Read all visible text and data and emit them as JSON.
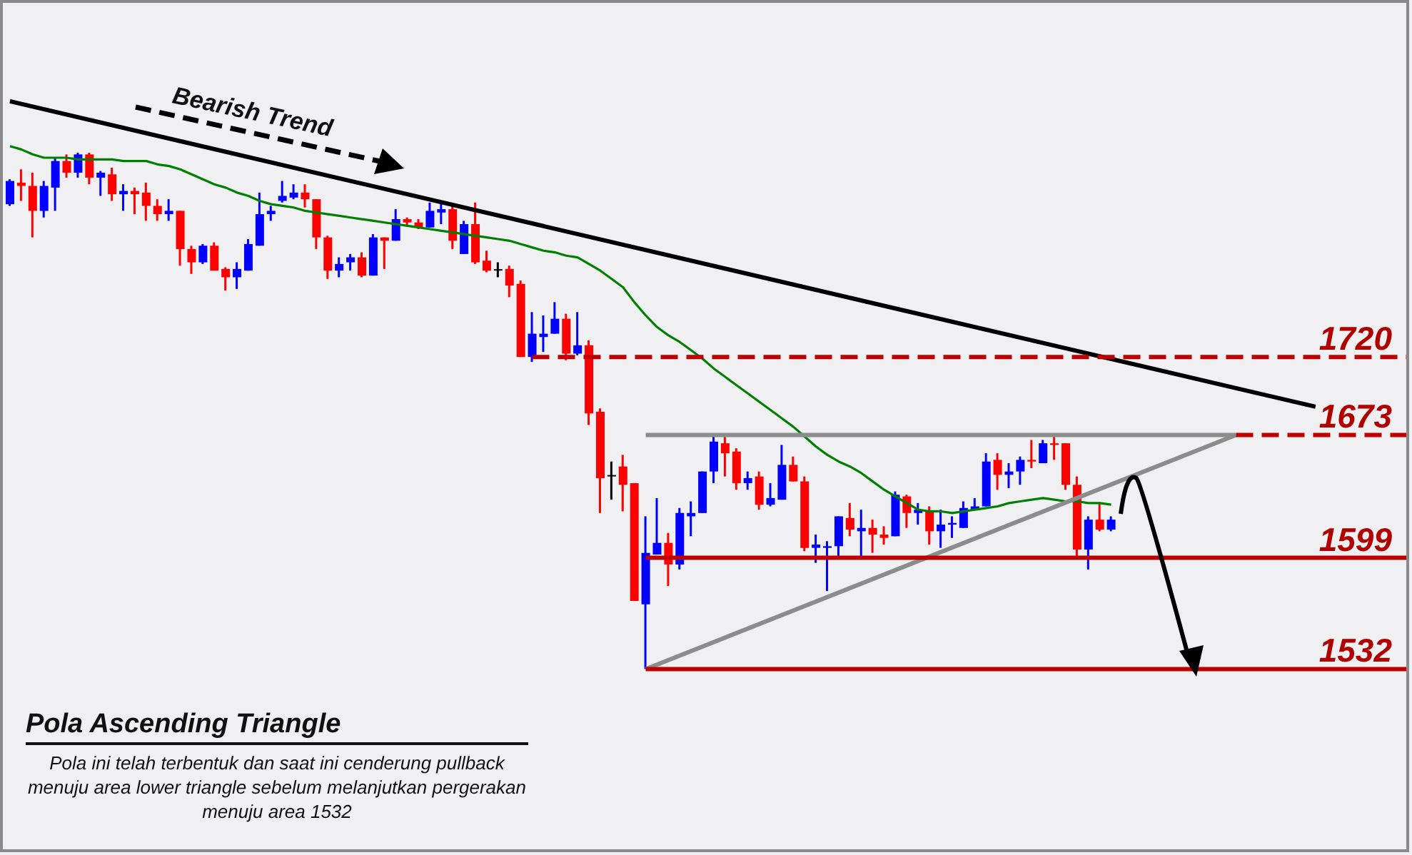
{
  "chart_data": {
    "type": "candlestick",
    "title": "Pola Ascending Triangle",
    "subtitle": "Pola ini telah terbentuk dan saat ini cenderung pullback menuju area lower triangle sebelum melanjutkan pergerakan menuju area 1532",
    "annotations": [
      "Bearish Trend"
    ],
    "categories": [
      null,
      null,
      null,
      null,
      null,
      null,
      null,
      null,
      null,
      null,
      null,
      null,
      null,
      null,
      null,
      null,
      null,
      null,
      null,
      null,
      null,
      null,
      null,
      null,
      null,
      null,
      null,
      null,
      null,
      null,
      null,
      null,
      null,
      null,
      null,
      null,
      null,
      null,
      null,
      null,
      null,
      null,
      null,
      null,
      null,
      null,
      null,
      null,
      null,
      null,
      null,
      null,
      null,
      null,
      null,
      null,
      null,
      null,
      null,
      null,
      null,
      null,
      null,
      null,
      null,
      null,
      null,
      null,
      null,
      null,
      null,
      null,
      null,
      null,
      null,
      null,
      null,
      null,
      null,
      null,
      null,
      null,
      null,
      null,
      null,
      null,
      null,
      null,
      null,
      null,
      null,
      null,
      null,
      null,
      null,
      null,
      null,
      null,
      null,
      null,
      null,
      null,
      null,
      null,
      null,
      null,
      null,
      null,
      null,
      null,
      null,
      null,
      null,
      null,
      null,
      null,
      null,
      null,
      null,
      null,
      null,
      null,
      null,
      null
    ],
    "ylim": [
      1420,
      1935
    ],
    "yticks": [
      1532,
      1599,
      1673,
      1720
    ],
    "tick_labels": "y",
    "ref_lines": [
      {
        "axis": "y",
        "value": 1720,
        "color": "#c00000",
        "line_style": "dashed"
      },
      {
        "axis": "y",
        "value": 1673,
        "color": "#c00000",
        "line_style": "dashed"
      },
      {
        "axis": "y",
        "value": 1599,
        "color": "#c00000",
        "line_style": "solid"
      },
      {
        "axis": "y",
        "value": 1532,
        "color": "#c00000",
        "line_style": "solid"
      }
    ],
    "series": [
      {
        "ohlc": [
          [
            1812,
            1827,
            1811,
            1826
          ],
          [
            1825,
            1833,
            1814,
            1823
          ],
          [
            1823,
            1831,
            1792,
            1808
          ],
          [
            1808,
            1826,
            1804,
            1823
          ],
          [
            1822,
            1840,
            1808,
            1838
          ],
          [
            1838,
            1842,
            1828,
            1831
          ],
          [
            1831,
            1843,
            1828,
            1842
          ],
          [
            1842,
            1843,
            1824,
            1828
          ],
          [
            1828,
            1832,
            1817,
            1831
          ],
          [
            1830,
            1834,
            1814,
            1818
          ],
          [
            1818,
            1824,
            1808,
            1820
          ],
          [
            1820,
            1822,
            1806,
            1818
          ],
          [
            1819,
            1825,
            1802,
            1811
          ],
          [
            1811,
            1815,
            1802,
            1806
          ],
          [
            1806,
            1815,
            1802,
            1808
          ],
          [
            1808,
            1808,
            1775,
            1785
          ],
          [
            1785,
            1787,
            1770,
            1777
          ],
          [
            1777,
            1788,
            1776,
            1787
          ],
          [
            1787,
            1789,
            1772,
            1772
          ],
          [
            1773,
            1774,
            1760,
            1768
          ],
          [
            1768,
            1777,
            1761,
            1773
          ],
          [
            1772,
            1791,
            1772,
            1788
          ],
          [
            1787,
            1819,
            1787,
            1806
          ],
          [
            1806,
            1811,
            1802,
            1808
          ],
          [
            1814,
            1826,
            1813,
            1817
          ],
          [
            1816,
            1824,
            1815,
            1819
          ],
          [
            1819,
            1824,
            1810,
            1815
          ],
          [
            1815,
            1815,
            1785,
            1792
          ],
          [
            1792,
            1793,
            1767,
            1772
          ],
          [
            1772,
            1780,
            1768,
            1776
          ],
          [
            1777,
            1782,
            1772,
            1780
          ],
          [
            1780,
            1783,
            1768,
            1769
          ],
          [
            1769,
            1794,
            1769,
            1792
          ],
          [
            1792,
            1792,
            1773,
            1790
          ],
          [
            1790,
            1809,
            1790,
            1803
          ],
          [
            1803,
            1804,
            1799,
            1801
          ],
          [
            1801,
            1803,
            1797,
            1798
          ],
          [
            1798,
            1813,
            1798,
            1808
          ],
          [
            1807,
            1813,
            1800,
            1809
          ],
          [
            1809,
            1811,
            1785,
            1790
          ],
          [
            1782,
            1802,
            1782,
            1800
          ],
          [
            1800,
            1813,
            1776,
            1777
          ],
          [
            1778,
            1784,
            1771,
            1772
          ],
          [
            1772,
            1777,
            1768,
            1772
          ],
          [
            1773,
            1775,
            1756,
            1763
          ],
          [
            1764,
            1766,
            1720,
            1720
          ],
          [
            1720,
            1747,
            1717,
            1734
          ],
          [
            1732,
            1745,
            1723,
            1734
          ],
          [
            1734,
            1753,
            1734,
            1743
          ],
          [
            1743,
            1746,
            1718,
            1722
          ],
          [
            1722,
            1747,
            1721,
            1727
          ],
          [
            1727,
            1730,
            1679,
            1686
          ],
          [
            1687,
            1689,
            1626,
            1647
          ],
          [
            1648,
            1657,
            1634,
            1648
          ],
          [
            1654,
            1661,
            1627,
            1643
          ],
          [
            1644,
            1644,
            1573,
            1573
          ],
          [
            1571,
            1624,
            1532,
            1602
          ],
          [
            1601,
            1635,
            1601,
            1608
          ],
          [
            1608,
            1614,
            1582,
            1595
          ],
          [
            1595,
            1629,
            1592,
            1626
          ],
          [
            1624,
            1633,
            1612,
            1626
          ],
          [
            1626,
            1651,
            1626,
            1651
          ],
          [
            1651,
            1674,
            1644,
            1669
          ],
          [
            1668,
            1674,
            1648,
            1662
          ],
          [
            1663,
            1665,
            1640,
            1644
          ],
          [
            1644,
            1651,
            1640,
            1647
          ],
          [
            1648,
            1651,
            1628,
            1631
          ],
          [
            1631,
            1644,
            1630,
            1635
          ],
          [
            1634,
            1667,
            1634,
            1655
          ],
          [
            1655,
            1660,
            1645,
            1645
          ],
          [
            1645,
            1648,
            1603,
            1605
          ],
          [
            1605,
            1613,
            1596,
            1607
          ],
          [
            1605,
            1609,
            1579,
            1606
          ],
          [
            1606,
            1624,
            1600,
            1624
          ],
          [
            1623,
            1632,
            1612,
            1616
          ],
          [
            1615,
            1628,
            1600,
            1617
          ],
          [
            1617,
            1622,
            1602,
            1613
          ],
          [
            1613,
            1618,
            1607,
            1611
          ],
          [
            1612,
            1639,
            1612,
            1637
          ],
          [
            1636,
            1637,
            1617,
            1626
          ],
          [
            1626,
            1632,
            1619,
            1628
          ],
          [
            1627,
            1630,
            1607,
            1615
          ],
          [
            1615,
            1628,
            1605,
            1619
          ],
          [
            1619,
            1624,
            1611,
            1620
          ],
          [
            1617,
            1633,
            1617,
            1629
          ],
          [
            1628,
            1635,
            1628,
            1630
          ],
          [
            1630,
            1662,
            1630,
            1657
          ],
          [
            1658,
            1662,
            1640,
            1649
          ],
          [
            1649,
            1656,
            1641,
            1651
          ],
          [
            1651,
            1660,
            1643,
            1658
          ],
          [
            1658,
            1670,
            1653,
            1657
          ],
          [
            1656,
            1670,
            1656,
            1668
          ],
          [
            1668,
            1674,
            1658,
            1667
          ],
          [
            1668,
            1668,
            1640,
            1643
          ],
          [
            1643,
            1648,
            1600,
            1604
          ],
          [
            1604,
            1624,
            1592,
            1622
          ],
          [
            1622,
            1632,
            1615,
            1616
          ],
          [
            1616,
            1624,
            1615,
            1622
          ],
          null,
          null,
          null,
          null,
          null,
          null,
          null,
          null,
          null,
          null,
          null,
          null,
          null,
          null,
          null,
          null,
          null,
          null,
          null,
          null,
          null,
          null,
          null,
          null,
          null,
          null
        ],
        "colors": [
          "#0000ff",
          "#ff0000",
          "#ff0000",
          "#0000ff",
          "#0000ff",
          "#ff0000",
          "#0000ff",
          "#ff0000",
          "#0000ff",
          "#ff0000",
          "#0000ff",
          "#ff0000",
          "#ff0000",
          "#ff0000",
          "#0000ff",
          "#ff0000",
          "#ff0000",
          "#0000ff",
          "#ff0000",
          "#ff0000",
          "#0000ff",
          "#0000ff",
          "#0000ff",
          "#0000ff",
          "#0000ff",
          "#0000ff",
          "#ff0000",
          "#ff0000",
          "#ff0000",
          "#0000ff",
          "#0000ff",
          "#ff0000",
          "#0000ff",
          "#ff0000",
          "#0000ff",
          "#ff0000",
          "#ff0000",
          "#0000ff",
          "#0000ff",
          "#ff0000",
          "#0000ff",
          "#ff0000",
          "#ff0000",
          "#000000",
          "#ff0000",
          "#ff0000",
          "#0000ff",
          "#0000ff",
          "#0000ff",
          "#ff0000",
          "#0000ff",
          "#ff0000",
          "#ff0000",
          "#000000",
          "#ff0000",
          "#ff0000",
          "#0000ff",
          "#0000ff",
          "#ff0000",
          "#0000ff",
          "#0000ff",
          "#0000ff",
          "#0000ff",
          "#ff0000",
          "#ff0000",
          "#0000ff",
          "#ff0000",
          "#0000ff",
          "#0000ff",
          "#ff0000",
          "#ff0000",
          "#0000ff",
          "#0000ff",
          "#0000ff",
          "#ff0000",
          "#0000ff",
          "#ff0000",
          "#ff0000",
          "#0000ff",
          "#ff0000",
          "#0000ff",
          "#ff0000",
          "#0000ff",
          "#0000ff",
          "#0000ff",
          "#0000ff",
          "#0000ff",
          "#ff0000",
          "#0000ff",
          "#0000ff",
          "#ff0000",
          "#0000ff",
          "#ff0000",
          "#ff0000",
          "#ff0000",
          "#0000ff",
          "#ff0000",
          "#0000ff",
          null,
          null,
          null,
          null,
          null,
          null,
          null,
          null,
          null,
          null,
          null,
          null,
          null,
          null,
          null,
          null,
          null,
          null,
          null,
          null,
          null,
          null,
          null,
          null,
          null,
          null
        ]
      },
      {
        "type": "line",
        "color": "#008000",
        "values": [
          1847,
          1845,
          1842,
          1840,
          1840,
          1840,
          1839,
          1839,
          1839,
          1839,
          1838,
          1838,
          1838,
          1836,
          1835,
          1833,
          1830,
          1827,
          1824,
          1822,
          1819,
          1817,
          1814,
          1812,
          1811,
          1810,
          1808,
          1807,
          1806,
          1805,
          1804,
          1803,
          1802,
          1801,
          1800,
          1799,
          1798,
          1797,
          1796,
          1795,
          1794,
          1793,
          1792,
          1791,
          1790,
          1788,
          1786,
          1784,
          1783,
          1781,
          1780,
          1776,
          1772,
          1767,
          1762,
          1753,
          1745,
          1738,
          1733,
          1729,
          1724,
          1719,
          1713,
          1708,
          1703,
          1698,
          1693,
          1688,
          1683,
          1678,
          1672,
          1666,
          1661,
          1657,
          1654,
          1650,
          1645,
          1640,
          1636,
          1632,
          1628,
          1627,
          1627,
          1626,
          1627,
          1628,
          1629,
          1630,
          1632,
          1633,
          1634,
          1635,
          1634,
          1633,
          1633,
          1632,
          1632,
          1631,
          null,
          null,
          null,
          null,
          null,
          null,
          null,
          null,
          null,
          null,
          null,
          null,
          null,
          null,
          null,
          null,
          null,
          null,
          null,
          null,
          null,
          null,
          null,
          null,
          null,
          null
        ]
      },
      {
        "type": "line",
        "color": "#000000",
        "values": [
          1874,
          null,
          null,
          null,
          null,
          null,
          null,
          null,
          null,
          null,
          null,
          null,
          null,
          null,
          null,
          null,
          null,
          null,
          null,
          null,
          null,
          null,
          null,
          null,
          null,
          null,
          null,
          null,
          null,
          null,
          null,
          null,
          null,
          null,
          null,
          null,
          null,
          null,
          null,
          null,
          null,
          null,
          null,
          null,
          null,
          null,
          null,
          null,
          null,
          null,
          null,
          null,
          null,
          null,
          null,
          null,
          null,
          null,
          null,
          null,
          null,
          null,
          null,
          null,
          null,
          null,
          null,
          null,
          null,
          null,
          null,
          null,
          null,
          null,
          null,
          null,
          null,
          null,
          null,
          null,
          null,
          null,
          null,
          null,
          null,
          null,
          null,
          null,
          null,
          null,
          null,
          null,
          null,
          null,
          null,
          null,
          null,
          null,
          null,
          null,
          null,
          null,
          null,
          null,
          null,
          null,
          null,
          null,
          null,
          null,
          null,
          null,
          null,
          null,
          null,
          1690,
          null,
          null,
          null,
          null,
          null,
          null,
          null,
          null
        ]
      },
      {
        "type": "line",
        "color": "#8c8c8c",
        "values": [
          null,
          null,
          null,
          null,
          null,
          null,
          null,
          null,
          null,
          null,
          null,
          null,
          null,
          null,
          null,
          null,
          null,
          null,
          null,
          null,
          null,
          null,
          null,
          null,
          null,
          null,
          null,
          null,
          null,
          null,
          null,
          null,
          null,
          null,
          null,
          null,
          null,
          null,
          null,
          null,
          null,
          null,
          null,
          null,
          null,
          null,
          null,
          null,
          null,
          null,
          null,
          null,
          null,
          null,
          null,
          null,
          1673,
          null,
          null,
          null,
          null,
          null,
          null,
          null,
          null,
          null,
          null,
          null,
          null,
          null,
          null,
          null,
          null,
          null,
          null,
          null,
          null,
          null,
          null,
          null,
          null,
          null,
          null,
          null,
          null,
          null,
          null,
          null,
          null,
          null,
          null,
          null,
          null,
          null,
          null,
          null,
          null,
          null,
          null,
          null,
          null,
          null,
          null,
          null,
          null,
          null,
          null,
          null,
          1673,
          null,
          null,
          null,
          null,
          null,
          null,
          null,
          null,
          null,
          null,
          null,
          null,
          null,
          null,
          null
        ]
      },
      {
        "type": "line",
        "color": "#8c8c8c",
        "values": [
          null,
          null,
          null,
          null,
          null,
          null,
          null,
          null,
          null,
          null,
          null,
          null,
          null,
          null,
          null,
          null,
          null,
          null,
          null,
          null,
          null,
          null,
          null,
          null,
          null,
          null,
          null,
          null,
          null,
          null,
          null,
          null,
          null,
          null,
          null,
          null,
          null,
          null,
          null,
          null,
          null,
          null,
          null,
          null,
          null,
          null,
          null,
          null,
          null,
          null,
          null,
          null,
          null,
          null,
          null,
          null,
          1532,
          null,
          null,
          null,
          null,
          null,
          null,
          null,
          null,
          null,
          null,
          null,
          null,
          null,
          null,
          null,
          null,
          null,
          null,
          null,
          null,
          null,
          null,
          null,
          null,
          null,
          null,
          null,
          null,
          null,
          null,
          null,
          null,
          null,
          null,
          null,
          null,
          null,
          null,
          null,
          null,
          null,
          null,
          null,
          null,
          null,
          null,
          null,
          null,
          null,
          null,
          null,
          1673,
          null,
          null,
          null,
          null,
          null,
          null,
          null,
          null,
          null,
          null,
          null,
          null,
          null,
          null,
          null
        ]
      }
    ]
  }
}
